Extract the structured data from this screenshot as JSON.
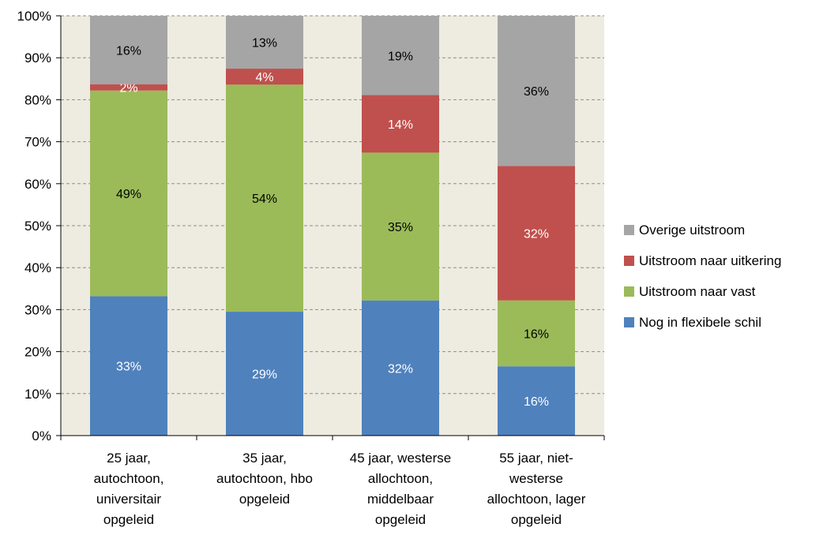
{
  "chart_data": {
    "type": "bar",
    "stacked": true,
    "categories": [
      [
        "25 jaar,",
        "autochtoon,",
        "universitair",
        "opgeleid"
      ],
      [
        "35 jaar,",
        "autochtoon, hbo",
        "opgeleid"
      ],
      [
        "45 jaar,  westerse",
        "allochtoon,",
        "middelbaar",
        "opgeleid"
      ],
      [
        "55 jaar, niet-",
        "westerse",
        "allochtoon, lager",
        "opgeleid"
      ]
    ],
    "series": [
      {
        "name": "Nog in flexibele schil",
        "color": "#4f81bd",
        "label_color": "#ffffff",
        "values": [
          33.2,
          29.5,
          32.2,
          16.5
        ],
        "labels": [
          "33%",
          "29%",
          "32%",
          "16%"
        ]
      },
      {
        "name": "Uitstroom naar vast",
        "color": "#9bbb59",
        "label_color": "#000000",
        "values": [
          49.0,
          54.1,
          35.2,
          15.7
        ],
        "labels": [
          "49%",
          "54%",
          "35%",
          "16%"
        ]
      },
      {
        "name": "Uitstroom naar uitkering",
        "color": "#c0504d",
        "label_color": "#ffffff",
        "values": [
          1.5,
          3.8,
          13.7,
          32.0
        ],
        "labels": [
          "2%",
          "4%",
          "14%",
          "32%"
        ]
      },
      {
        "name": "Overige uitstroom",
        "color": "#a5a5a5",
        "label_color": "#000000",
        "values": [
          16.3,
          12.6,
          18.9,
          35.8
        ],
        "labels": [
          "16%",
          "13%",
          "19%",
          "36%"
        ]
      }
    ],
    "ylim": [
      0,
      100
    ],
    "yticks": [
      "0%",
      "10%",
      "20%",
      "30%",
      "40%",
      "50%",
      "60%",
      "70%",
      "80%",
      "90%",
      "100%"
    ],
    "grid": true,
    "legend_position": "right",
    "legend_order": [
      "Overige uitstroom",
      "Uitstroom naar uitkering",
      "Uitstroom naar vast",
      "Nog in flexibele schil"
    ],
    "plot_background": "#eeebe1"
  }
}
